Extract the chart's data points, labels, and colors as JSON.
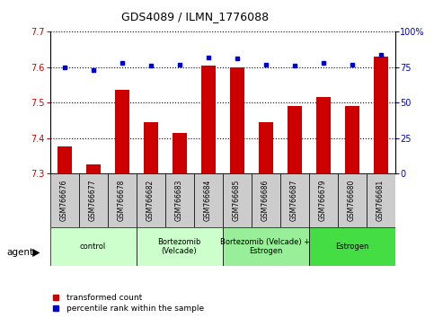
{
  "title": "GDS4089 / ILMN_1776088",
  "samples": [
    "GSM766676",
    "GSM766677",
    "GSM766678",
    "GSM766682",
    "GSM766683",
    "GSM766684",
    "GSM766685",
    "GSM766686",
    "GSM766687",
    "GSM766679",
    "GSM766680",
    "GSM766681"
  ],
  "red_values": [
    7.375,
    7.325,
    7.535,
    7.445,
    7.415,
    7.605,
    7.6,
    7.445,
    7.49,
    7.515,
    7.49,
    7.63
  ],
  "blue_values": [
    75,
    73,
    78,
    76,
    77,
    82,
    81,
    77,
    76,
    78,
    77,
    84
  ],
  "ylim_left": [
    7.3,
    7.7
  ],
  "ylim_right": [
    0,
    100
  ],
  "yticks_left": [
    7.3,
    7.4,
    7.5,
    7.6,
    7.7
  ],
  "yticks_right": [
    0,
    25,
    50,
    75,
    100
  ],
  "groups": [
    {
      "label": "control",
      "start": 0,
      "end": 3,
      "color": "#ccffcc"
    },
    {
      "label": "Bortezomib\n(Velcade)",
      "start": 3,
      "end": 6,
      "color": "#ccffcc"
    },
    {
      "label": "Bortezomib (Velcade) +\nEstrogen",
      "start": 6,
      "end": 9,
      "color": "#99ee99"
    },
    {
      "label": "Estrogen",
      "start": 9,
      "end": 12,
      "color": "#44dd44"
    }
  ],
  "bar_color": "#cc0000",
  "dot_color": "#0000cc",
  "grid_color": "#000000",
  "bg_color": "#ffffff",
  "plot_bg": "#ffffff",
  "bar_bottom": 7.3,
  "legend_red_label": "transformed count",
  "legend_blue_label": "percentile rank within the sample",
  "agent_label": "agent"
}
